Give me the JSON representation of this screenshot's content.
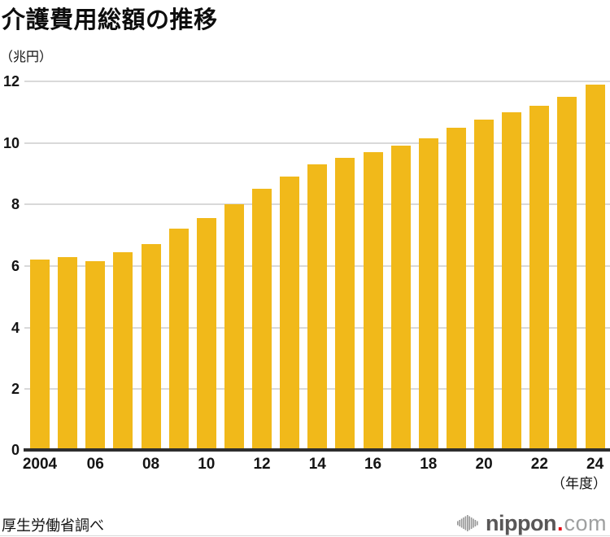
{
  "header": {
    "title": "介護費用総額の推移",
    "unit_label": "（兆円）"
  },
  "chart_data": {
    "type": "bar",
    "title": "介護費用総額の推移",
    "ylabel": "（兆円）",
    "x_axis_suffix": "（年度）",
    "years": [
      2004,
      2005,
      2006,
      2007,
      2008,
      2009,
      2010,
      2011,
      2012,
      2013,
      2014,
      2015,
      2016,
      2017,
      2018,
      2019,
      2020,
      2021,
      2022,
      2023,
      2024
    ],
    "values": [
      6.2,
      6.3,
      6.15,
      6.45,
      6.7,
      7.2,
      7.55,
      8.0,
      8.5,
      8.9,
      9.3,
      9.5,
      9.7,
      9.9,
      10.15,
      10.5,
      10.75,
      11.0,
      11.2,
      11.5,
      11.9
    ],
    "xtick_labels": [
      "2004",
      "06",
      "08",
      "10",
      "12",
      "14",
      "16",
      "18",
      "20",
      "22",
      "24"
    ],
    "xtick_step": 2,
    "yticks": [
      0,
      2,
      4,
      6,
      8,
      10,
      12
    ],
    "ylim": [
      0,
      12
    ],
    "grid": true,
    "legend": false,
    "bar_color": "#F1B91A",
    "gridline_color": "#D9D9D9",
    "axis_color": "#2E2E2E"
  },
  "footer": {
    "source": "厚生労働省調べ",
    "logo": {
      "word": "nippon",
      "dot": ".",
      "tld": "com",
      "word_color": "#595757",
      "dot_color": "#E60012",
      "tld_color": "#9FA0A0",
      "icon_color": "#979797"
    }
  }
}
